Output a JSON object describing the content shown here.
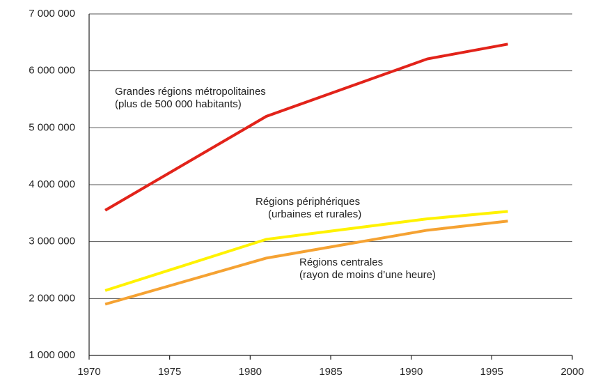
{
  "chart_data": {
    "type": "line",
    "x": [
      1971,
      1981,
      1991,
      1996
    ],
    "series": [
      {
        "name": "Grandes régions métropolitaines",
        "note": "(plus de 500 000 habitants)",
        "color": "#e2231a",
        "values": [
          3550000,
          5200000,
          6210000,
          6470000
        ]
      },
      {
        "name": "Régions périphériques",
        "note": "(urbaines et rurales)",
        "color": "#fff200",
        "values": [
          2140000,
          3040000,
          3400000,
          3530000
        ]
      },
      {
        "name": "Régions centrales",
        "note": "(rayon de moins d’une heure)",
        "color": "#f5a232",
        "values": [
          1900000,
          2710000,
          3200000,
          3360000
        ]
      }
    ],
    "xlim": [
      1970,
      2000
    ],
    "xticks": [
      1970,
      1975,
      1980,
      1985,
      1990,
      1995,
      2000
    ],
    "ylim": [
      1000000,
      7000000
    ],
    "yticks": [
      {
        "value": 1000000,
        "label": "1 000 000"
      },
      {
        "value": 2000000,
        "label": "2 000 000"
      },
      {
        "value": 3000000,
        "label": "3 000 000"
      },
      {
        "value": 4000000,
        "label": "4 000 000"
      },
      {
        "value": 5000000,
        "label": "5 000 000"
      },
      {
        "value": 6000000,
        "label": "6 000 000"
      },
      {
        "value": 7000000,
        "label": "7 000 000"
      }
    ],
    "grid": true
  }
}
